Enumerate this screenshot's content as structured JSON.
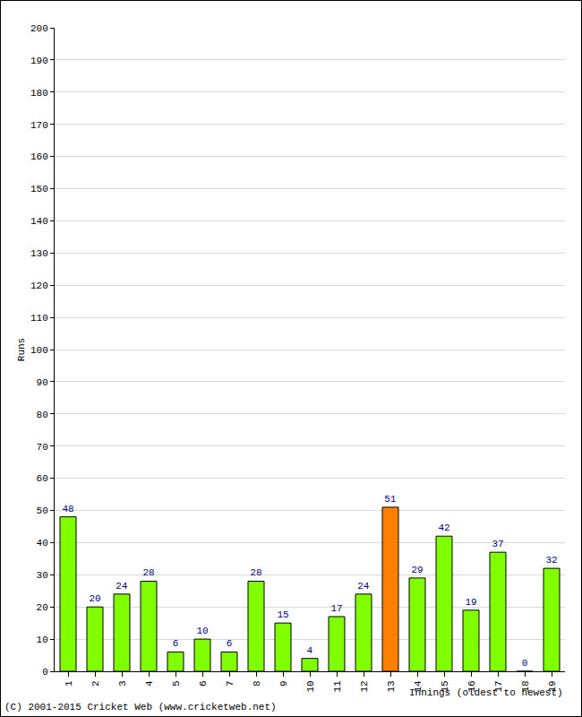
{
  "chart_data": {
    "type": "bar",
    "categories": [
      "1",
      "2",
      "3",
      "4",
      "5",
      "6",
      "7",
      "8",
      "9",
      "10",
      "11",
      "12",
      "13",
      "14",
      "15",
      "16",
      "17",
      "18",
      "19"
    ],
    "values": [
      48,
      20,
      24,
      28,
      6,
      10,
      6,
      28,
      15,
      4,
      17,
      24,
      51,
      29,
      42,
      19,
      37,
      0,
      32
    ],
    "colors": [
      "#80ff00",
      "#80ff00",
      "#80ff00",
      "#80ff00",
      "#80ff00",
      "#80ff00",
      "#80ff00",
      "#80ff00",
      "#80ff00",
      "#80ff00",
      "#80ff00",
      "#80ff00",
      "#ff8000",
      "#80ff00",
      "#80ff00",
      "#80ff00",
      "#80ff00",
      "#80ff00",
      "#80ff00"
    ],
    "y_label": "Runs",
    "x_label": "Innings (oldest to newest)",
    "annotations": [
      "(C) 2001-2015 Cricket Web (www.cricketweb.net)"
    ],
    "ylim": [
      0,
      200
    ],
    "yticks": [
      0,
      10,
      20,
      30,
      40,
      50,
      60,
      70,
      80,
      90,
      100,
      110,
      120,
      130,
      140,
      150,
      160,
      170,
      180,
      190,
      200
    ],
    "grid": true,
    "data_labels": true
  }
}
